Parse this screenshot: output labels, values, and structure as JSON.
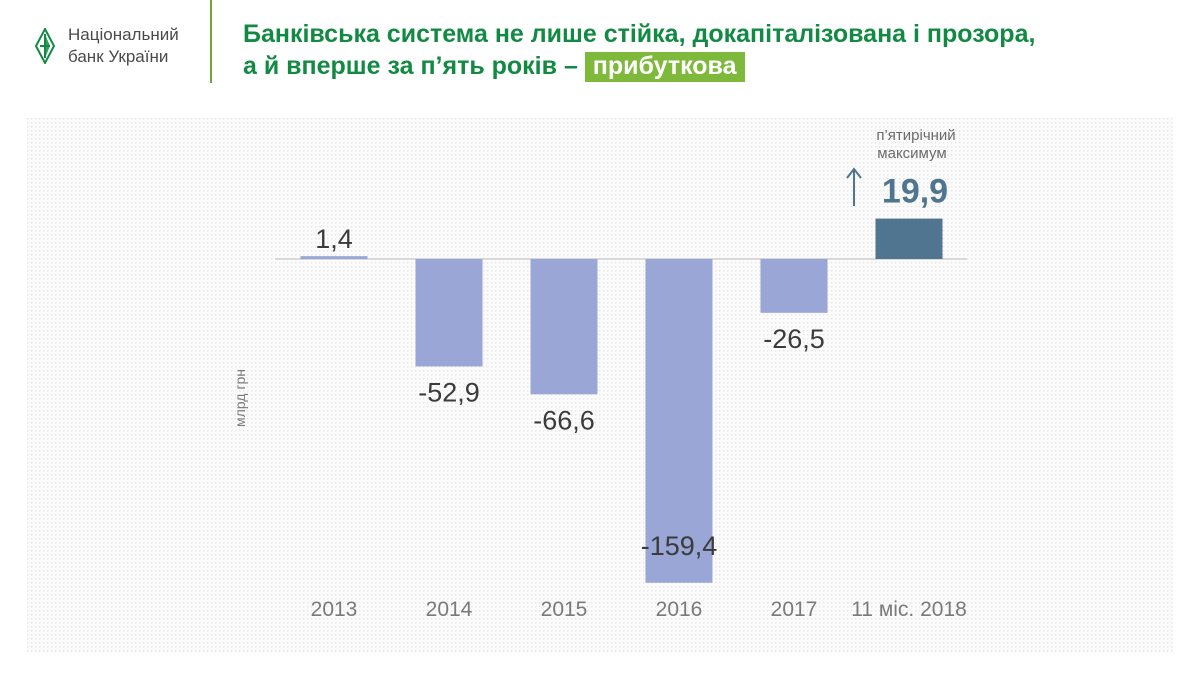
{
  "logo": {
    "line1": "Національний",
    "line2": "банк України"
  },
  "title": {
    "line1": "Банківська система не лише стійка, докапіталізована і прозора,",
    "line2_prefix": "а й вперше за п’ять років – ",
    "line2_highlight": "прибуткова"
  },
  "colors": {
    "brand_green": "#138a43",
    "highlight_green": "#7fb93b",
    "bar_negative": "#9aa6d5",
    "bar_latest": "#4f7590",
    "label_dark": "#3b3b3b",
    "label_latest": "#4f7590",
    "tick": "#7a7a7a"
  },
  "annotation": {
    "line1": "п’ятирічний",
    "line2": "максимум",
    "icon": "arrow-up-icon"
  },
  "chart_data": {
    "type": "bar",
    "categories": [
      "2013",
      "2014",
      "2015",
      "2016",
      "2017",
      "11 міс. 2018"
    ],
    "values": [
      1.4,
      -52.9,
      -66.6,
      -159.4,
      -26.5,
      19.9
    ],
    "value_labels": [
      "1,4",
      "-52,9",
      "-66,6",
      "-159,4",
      "-26,5",
      "19,9"
    ],
    "ylabel": "млрд грн",
    "ylim": [
      -160,
      20
    ],
    "grid": false,
    "legend": "none"
  }
}
